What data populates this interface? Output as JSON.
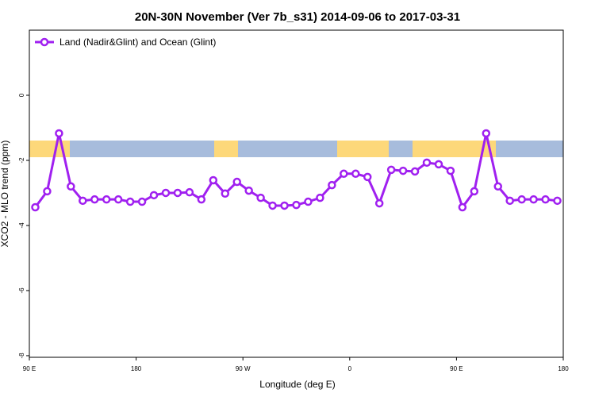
{
  "chart_data": {
    "type": "line",
    "title": "20N-30N November (Ver 7b_s31)   2014-09-06 to 2017-03-31",
    "x_label": "Longitude (deg E)",
    "y_label": "XCO2 - MLO trend (ppm)",
    "x": [
      95,
      105,
      115,
      125,
      135,
      145,
      155,
      165,
      175,
      185,
      195,
      205,
      215,
      225,
      235,
      245,
      255,
      265,
      275,
      285,
      295,
      305,
      315,
      325,
      335,
      345,
      355,
      365,
      375,
      385,
      395,
      405,
      415,
      425,
      435,
      445,
      455,
      465,
      475,
      485,
      495,
      505,
      515,
      525,
      535
    ],
    "series": [
      {
        "name": "Land (Nadir&Glint) and Ocean (Glint)",
        "color": "#a020f0",
        "values": [
          -3.44,
          -2.95,
          -1.17,
          -2.8,
          -3.24,
          -3.2,
          -3.2,
          -3.2,
          -3.27,
          -3.27,
          -3.07,
          -3.0,
          -3.0,
          -2.98,
          -3.2,
          -2.61,
          -3.02,
          -2.66,
          -2.93,
          -3.15,
          -3.39,
          -3.39,
          -3.37,
          -3.27,
          -3.15,
          -2.76,
          -2.41,
          -2.41,
          -2.51,
          -3.32,
          -2.29,
          -2.32,
          -2.34,
          -2.07,
          -2.12,
          -2.32,
          -3.44,
          -2.95,
          -1.17,
          -2.8,
          -3.24,
          -3.2,
          -3.2,
          -3.2,
          -3.24
        ]
      }
    ],
    "xlim": [
      90,
      540
    ],
    "xticks": [
      {
        "value": 90,
        "label": "90 E"
      },
      180,
      {
        "value": 270,
        "label": "90 W"
      },
      {
        "value": 360,
        "label": "0"
      },
      {
        "value": 450,
        "label": "90 E"
      },
      180
    ],
    "ylim": [
      -8.05,
      2
    ],
    "yticks": [
      0,
      -2,
      -4,
      -6,
      -8
    ],
    "legend": "top-left"
  }
}
